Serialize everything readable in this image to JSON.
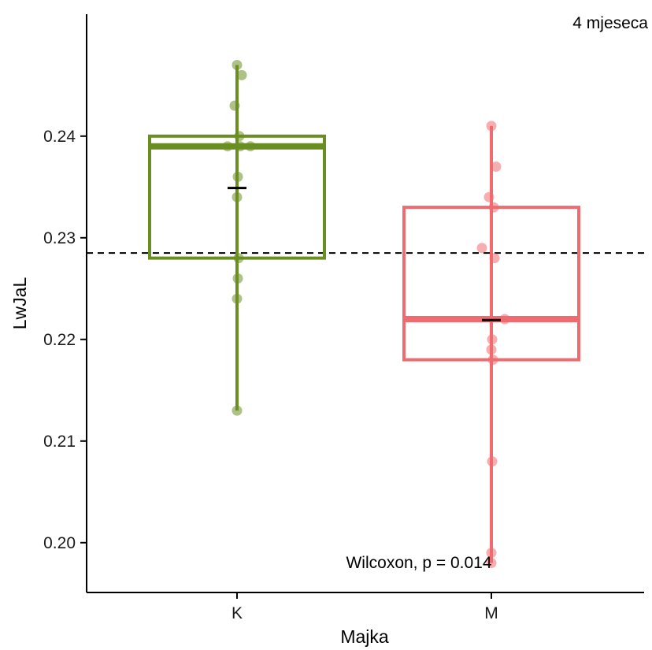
{
  "chart_data": {
    "type": "box",
    "title": "4 mjeseca",
    "xlabel": "Majka",
    "ylabel": "LwJaL",
    "categories": [
      "K",
      "M"
    ],
    "ylim": [
      0.1951,
      0.252
    ],
    "yticks": [
      0.2,
      0.21,
      0.22,
      0.23,
      0.24
    ],
    "ytick_labels": [
      "0.20",
      "0.21",
      "0.22",
      "0.23",
      "0.24"
    ],
    "overall_mean": 0.2285,
    "annotation": "Wilcoxon, p = 0.014",
    "grid": false,
    "legend": "none",
    "series": [
      {
        "category": "K",
        "color": "#6b8e23",
        "min": 0.213,
        "q1": 0.228,
        "median": 0.239,
        "q3": 0.24,
        "max": 0.247,
        "mean": 0.2349,
        "points": [
          0.247,
          0.246,
          0.243,
          0.24,
          0.239,
          0.239,
          0.239,
          0.236,
          0.234,
          0.228,
          0.226,
          0.224,
          0.213
        ]
      },
      {
        "category": "M",
        "color": "#f06b6f",
        "min": 0.198,
        "q1": 0.218,
        "median": 0.222,
        "q3": 0.233,
        "max": 0.241,
        "mean": 0.2219,
        "points": [
          0.241,
          0.237,
          0.234,
          0.233,
          0.229,
          0.228,
          0.222,
          0.22,
          0.219,
          0.218,
          0.208,
          0.199,
          0.198
        ]
      }
    ]
  }
}
